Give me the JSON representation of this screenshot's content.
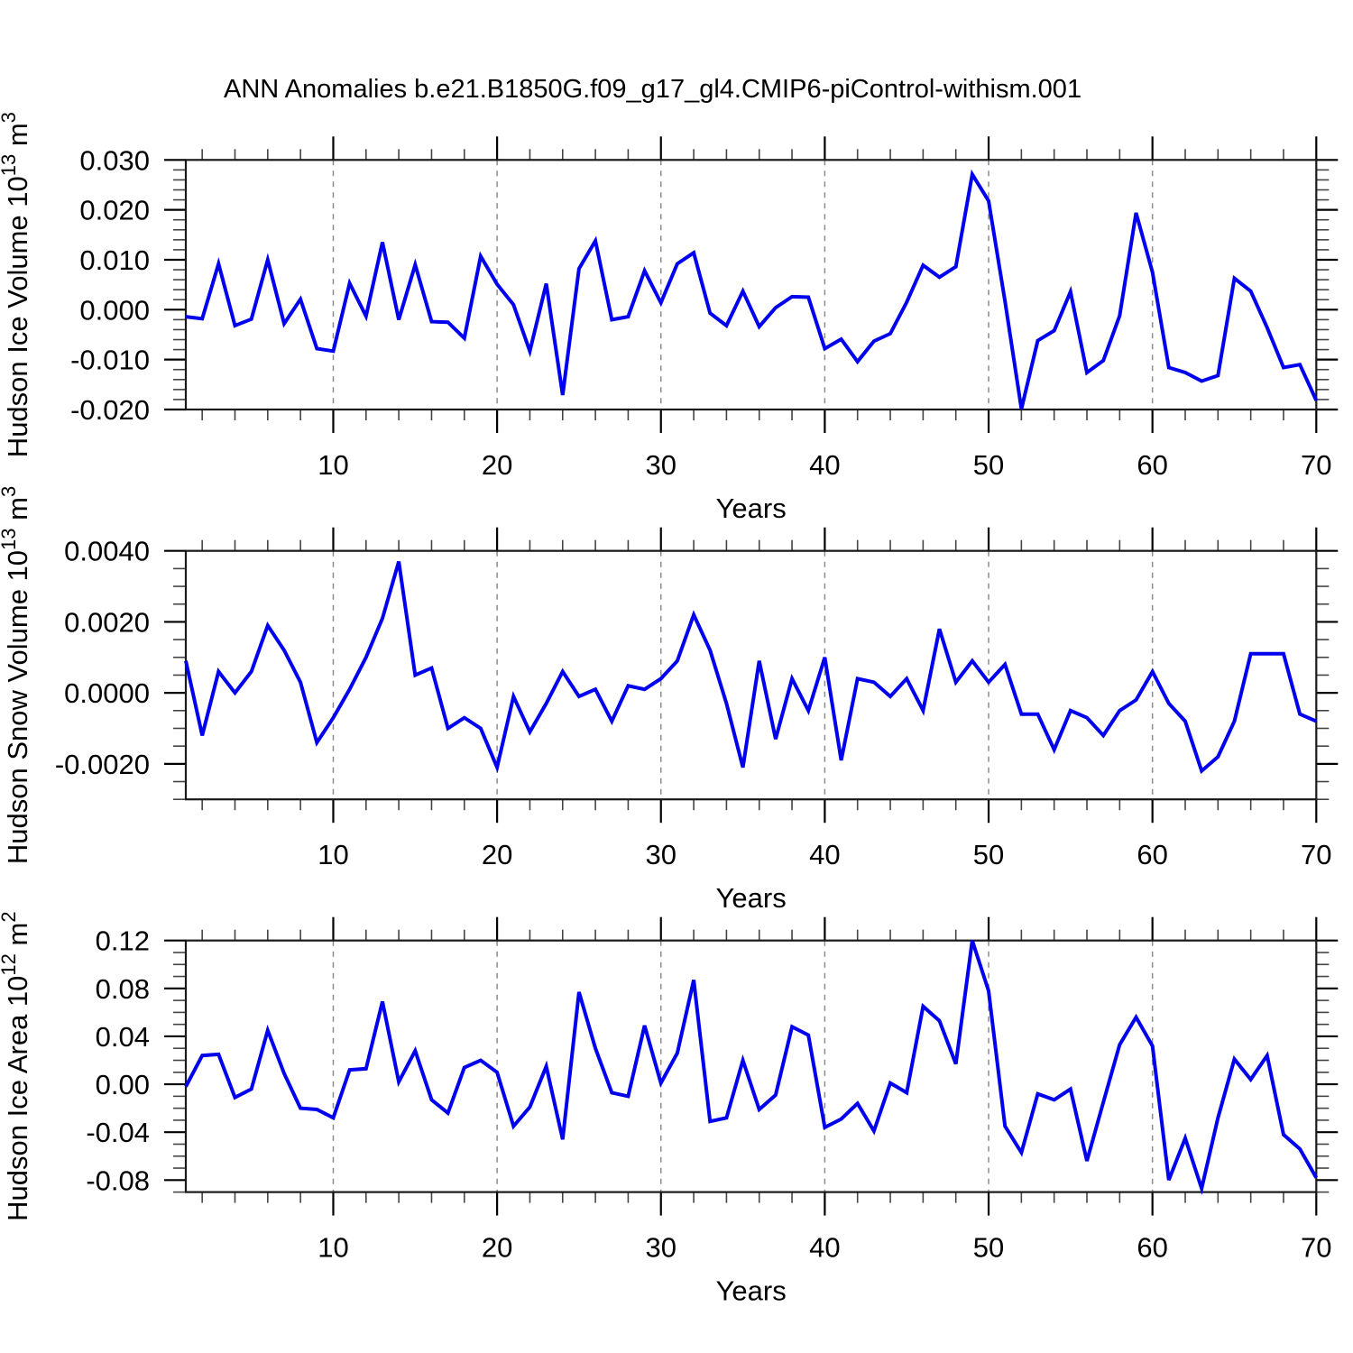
{
  "title": "ANN Anomalies b.e21.B1850G.f09_g17_gl4.CMIP6-piControl-withism.001",
  "style": {
    "line_color": "#0000ee",
    "grid_color": "#8c8c8c",
    "frame_color": "#1a1a1a",
    "major_tick_color": "#000000",
    "minor_tick_color": "#444444",
    "background": "#ffffff"
  },
  "x_axis": {
    "label": "Years",
    "min": 1,
    "max": 70,
    "major_ticks": [
      10,
      20,
      30,
      40,
      50,
      60,
      70
    ],
    "minor_tick_step": 2,
    "gridlines_dashed_at": [
      10,
      20,
      30,
      40,
      50,
      60
    ]
  },
  "chart_data": [
    {
      "type": "line",
      "name": "hudson-ice-volume",
      "ylabel": "Hudson Ice Volume 10^13 m^3",
      "ylabel_segments": [
        {
          "text": "Hudson Ice Volume 10",
          "sup": false
        },
        {
          "text": "13",
          "sup": true
        },
        {
          "text": " m",
          "sup": false
        },
        {
          "text": "3",
          "sup": true
        }
      ],
      "xlabel": "Years",
      "x_start": 1,
      "x_step": 1,
      "ylim": [
        -0.02,
        0.03
      ],
      "ytick_major": 0.01,
      "ytick_minor": 0.002,
      "ytick_labels": [
        "0.030",
        "0.020",
        "0.010",
        "0.000",
        "-0.010",
        "-0.020"
      ],
      "values": [
        -0.0014,
        -0.0018,
        0.0092,
        -0.0032,
        -0.0019,
        0.01,
        -0.0028,
        0.0021,
        -0.0078,
        -0.0083,
        0.0053,
        -0.0013,
        0.0135,
        -0.002,
        0.009,
        -0.0024,
        -0.0025,
        -0.0057,
        0.0107,
        0.0051,
        0.001,
        -0.0083,
        0.0052,
        -0.0171,
        0.0082,
        0.0138,
        -0.002,
        -0.0014,
        0.0078,
        0.0014,
        0.0092,
        0.0114,
        -0.0007,
        -0.0032,
        0.0037,
        -0.0034,
        0.0004,
        0.0026,
        0.0025,
        -0.0078,
        -0.0059,
        -0.0104,
        -0.0063,
        -0.0048,
        0.0015,
        0.0089,
        0.0065,
        0.0086,
        0.0271,
        0.0218,
        0.0017,
        -0.0199,
        -0.0062,
        -0.0042,
        0.0036,
        -0.0126,
        -0.0102,
        -0.0012,
        0.0194,
        0.0075,
        -0.0116,
        -0.0126,
        -0.0143,
        -0.0132,
        0.0063,
        0.0037,
        -0.0036,
        -0.0116,
        -0.011,
        -0.0182
      ]
    },
    {
      "type": "line",
      "name": "hudson-snow-volume",
      "ylabel": "Hudson Snow Volume 10^13 m^3",
      "ylabel_segments": [
        {
          "text": "Hudson Snow Volume 10",
          "sup": false
        },
        {
          "text": "13",
          "sup": true
        },
        {
          "text": " m",
          "sup": false
        },
        {
          "text": "3",
          "sup": true
        }
      ],
      "xlabel": "Years",
      "x_start": 1,
      "x_step": 1,
      "ylim": [
        -0.003,
        0.004
      ],
      "ytick_major": 0.002,
      "ytick_minor": 0.0005,
      "ytick_labels": [
        "0.0040",
        "0.0020",
        "0.0000",
        "-0.0020"
      ],
      "values": [
        0.0009,
        -0.0012,
        0.0006,
        0.0,
        0.0006,
        0.0019,
        0.0012,
        0.0003,
        -0.0014,
        -0.0007,
        0.0001,
        0.001,
        0.0021,
        0.0037,
        0.0005,
        0.0007,
        -0.001,
        -0.0007,
        -0.001,
        -0.0021,
        -0.0001,
        -0.0011,
        -0.0003,
        0.0006,
        -0.0001,
        0.0001,
        -0.0008,
        0.0002,
        0.0001,
        0.0004,
        0.0009,
        0.0022,
        0.0012,
        -0.0003,
        -0.0021,
        0.0009,
        -0.0013,
        0.0004,
        -0.0005,
        0.001,
        -0.0019,
        0.0004,
        0.0003,
        -0.0001,
        0.0004,
        -0.0005,
        0.0018,
        0.0003,
        0.0009,
        0.0003,
        0.0008,
        -0.0006,
        -0.0006,
        -0.0016,
        -0.0005,
        -0.0007,
        -0.0012,
        -0.0005,
        -0.0002,
        0.0006,
        -0.0003,
        -0.0008,
        -0.0022,
        -0.0018,
        -0.0008,
        0.0011,
        0.0011,
        0.0011,
        -0.0006,
        -0.0008
      ]
    },
    {
      "type": "line",
      "name": "hudson-ice-area",
      "ylabel": "Hudson Ice Area 10^12 m^2",
      "ylabel_segments": [
        {
          "text": "Hudson Ice Area 10",
          "sup": false
        },
        {
          "text": "12",
          "sup": true
        },
        {
          "text": " m",
          "sup": false
        },
        {
          "text": "2",
          "sup": true
        }
      ],
      "xlabel": "Years",
      "x_start": 1,
      "x_step": 1,
      "ylim": [
        -0.09,
        0.12
      ],
      "ytick_major": 0.04,
      "ytick_minor": 0.01,
      "ytick_labels": [
        "0.12",
        "0.08",
        "0.04",
        "0.00",
        "-0.04",
        "-0.08"
      ],
      "values": [
        -0.002,
        0.024,
        0.025,
        -0.011,
        -0.004,
        0.045,
        0.009,
        -0.02,
        -0.021,
        -0.028,
        0.012,
        0.013,
        0.069,
        0.002,
        0.028,
        -0.013,
        -0.024,
        0.014,
        0.02,
        0.01,
        -0.035,
        -0.019,
        0.015,
        -0.046,
        0.077,
        0.03,
        -0.007,
        -0.01,
        0.049,
        0.001,
        0.026,
        0.087,
        -0.031,
        -0.028,
        0.02,
        -0.021,
        -0.009,
        0.048,
        0.041,
        -0.036,
        -0.029,
        -0.016,
        -0.039,
        0.001,
        -0.007,
        0.065,
        0.053,
        0.017,
        0.12,
        0.078,
        -0.035,
        -0.057,
        -0.008,
        -0.013,
        -0.004,
        -0.064,
        -0.015,
        0.033,
        0.056,
        0.032,
        -0.08,
        -0.045,
        -0.087,
        -0.028,
        0.021,
        0.004,
        0.024,
        -0.042,
        -0.054,
        -0.078
      ]
    }
  ]
}
